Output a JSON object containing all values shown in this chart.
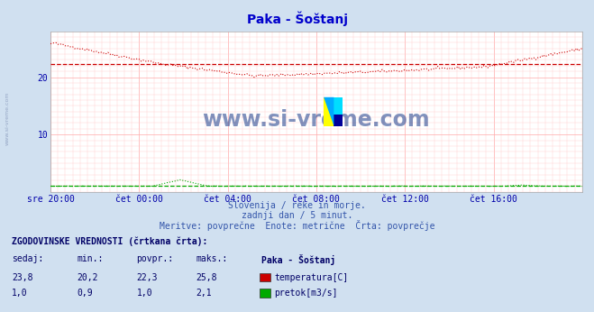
{
  "title": "Paka - Šoštanj",
  "title_color": "#0000cc",
  "bg_color": "#d0e0f0",
  "plot_bg_color": "#ffffff",
  "xlabel_color": "#0000aa",
  "ytick_color": "#0000aa",
  "xtick_labels": [
    "sre 20:00",
    "čet 00:00",
    "čet 04:00",
    "čet 08:00",
    "čet 12:00",
    "čet 16:00"
  ],
  "xmin": 0,
  "xmax": 288,
  "ymin": 0,
  "ymax": 28,
  "temp_color": "#cc0000",
  "flow_color": "#00aa00",
  "avg_temp": 22.3,
  "avg_flow": 1.0,
  "temp_current": 23.8,
  "temp_min": 20.2,
  "temp_max": 25.8,
  "flow_current": 1.0,
  "flow_min": 0.9,
  "flow_max": 2.1,
  "watermark_text": "www.si-vreme.com",
  "subtitle1": "Slovenija / reke in morje.",
  "subtitle2": "zadnji dan / 5 minut.",
  "subtitle3": "Meritve: povprečne  Enote: metrične  Črta: povprečje",
  "legend_title": "ZGODOVINSKE VREDNOSTI (črtkana črta):",
  "legend_col1": "sedaj:",
  "legend_col2": "min.:",
  "legend_col3": "povpr.:",
  "legend_col4": "maks.:",
  "legend_col5": "Paka - Šoštanj",
  "legend_label1": "temperatura[C]",
  "legend_label2": "pretok[m3/s]"
}
